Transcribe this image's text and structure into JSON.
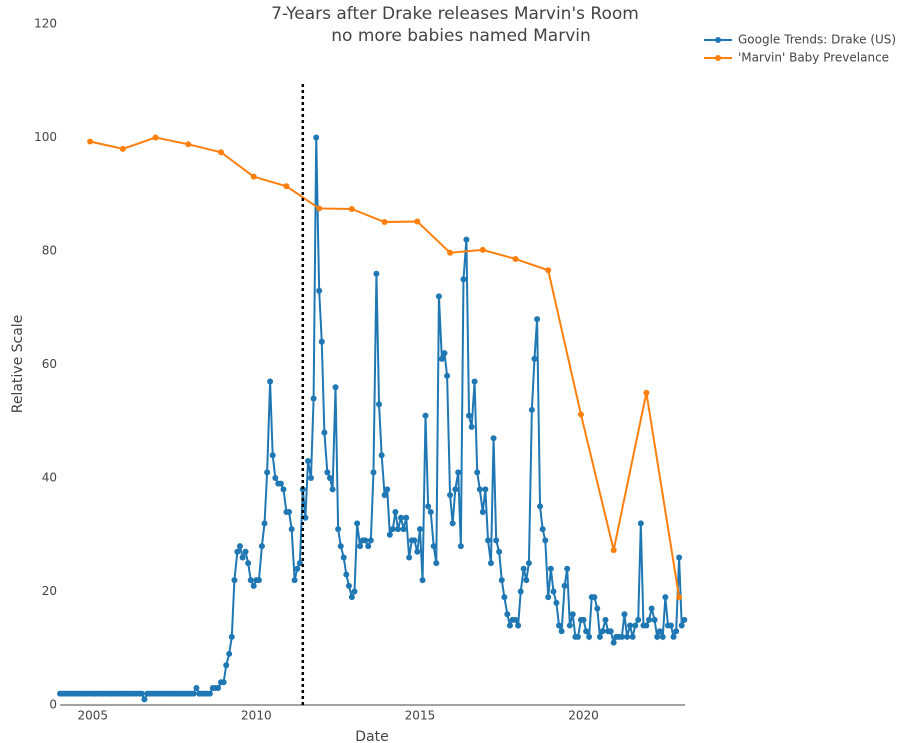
{
  "chart_data": {
    "type": "line",
    "title": [
      "7-Years after Drake releases Marvin's Room",
      "no more babies named Marvin"
    ],
    "x_label": "Date",
    "y_label": "Relative Scale",
    "xlim": [
      2004,
      2023.1
    ],
    "xticks": [
      2005,
      2010,
      2015,
      2020
    ],
    "ylim": [
      0,
      120
    ],
    "yticks": [
      0,
      20,
      40,
      60,
      80,
      100,
      120
    ],
    "grid": false,
    "legend": "top-right",
    "vline_x": 2011.42,
    "series": [
      {
        "name": "Google Trends: Drake (US)",
        "color": "#1f77b4",
        "x": [
          2004,
          2004.08,
          2004.17,
          2004.25,
          2004.33,
          2004.42,
          2004.5,
          2004.58,
          2004.67,
          2004.75,
          2004.83,
          2004.92,
          2005,
          2005.08,
          2005.17,
          2005.25,
          2005.33,
          2005.42,
          2005.5,
          2005.58,
          2005.67,
          2005.75,
          2005.83,
          2005.92,
          2006,
          2006.08,
          2006.17,
          2006.25,
          2006.33,
          2006.42,
          2006.5,
          2006.58,
          2006.67,
          2006.75,
          2006.83,
          2006.92,
          2007,
          2007.08,
          2007.17,
          2007.25,
          2007.33,
          2007.42,
          2007.5,
          2007.58,
          2007.67,
          2007.75,
          2007.83,
          2007.92,
          2008,
          2008.08,
          2008.17,
          2008.25,
          2008.33,
          2008.42,
          2008.5,
          2008.58,
          2008.67,
          2008.75,
          2008.83,
          2008.92,
          2009,
          2009.08,
          2009.17,
          2009.25,
          2009.33,
          2009.42,
          2009.5,
          2009.58,
          2009.67,
          2009.75,
          2009.83,
          2009.92,
          2010,
          2010.08,
          2010.17,
          2010.25,
          2010.33,
          2010.42,
          2010.5,
          2010.58,
          2010.67,
          2010.75,
          2010.83,
          2010.92,
          2011,
          2011.08,
          2011.17,
          2011.25,
          2011.33,
          2011.42,
          2011.5,
          2011.58,
          2011.67,
          2011.75,
          2011.83,
          2011.92,
          2012,
          2012.08,
          2012.17,
          2012.25,
          2012.33,
          2012.42,
          2012.5,
          2012.58,
          2012.67,
          2012.75,
          2012.83,
          2012.92,
          2013,
          2013.08,
          2013.17,
          2013.25,
          2013.33,
          2013.42,
          2013.5,
          2013.58,
          2013.67,
          2013.75,
          2013.83,
          2013.92,
          2014,
          2014.08,
          2014.17,
          2014.25,
          2014.33,
          2014.42,
          2014.5,
          2014.58,
          2014.67,
          2014.75,
          2014.83,
          2014.92,
          2015,
          2015.08,
          2015.17,
          2015.25,
          2015.33,
          2015.42,
          2015.5,
          2015.58,
          2015.67,
          2015.75,
          2015.83,
          2015.92,
          2016,
          2016.08,
          2016.17,
          2016.25,
          2016.33,
          2016.42,
          2016.5,
          2016.58,
          2016.67,
          2016.75,
          2016.83,
          2016.92,
          2017,
          2017.08,
          2017.17,
          2017.25,
          2017.33,
          2017.42,
          2017.5,
          2017.58,
          2017.67,
          2017.75,
          2017.83,
          2017.92,
          2018,
          2018.08,
          2018.17,
          2018.25,
          2018.33,
          2018.42,
          2018.5,
          2018.58,
          2018.67,
          2018.75,
          2018.83,
          2018.92,
          2019,
          2019.08,
          2019.17,
          2019.25,
          2019.33,
          2019.42,
          2019.5,
          2019.58,
          2019.67,
          2019.75,
          2019.83,
          2019.92,
          2020,
          2020.08,
          2020.17,
          2020.25,
          2020.33,
          2020.42,
          2020.5,
          2020.58,
          2020.67,
          2020.75,
          2020.83,
          2020.92,
          2021,
          2021.08,
          2021.17,
          2021.25,
          2021.33,
          2021.42,
          2021.5,
          2021.58,
          2021.67,
          2021.75,
          2021.83,
          2021.92,
          2022,
          2022.08,
          2022.17,
          2022.25,
          2022.33,
          2022.42,
          2022.5,
          2022.58,
          2022.67,
          2022.75,
          2022.83,
          2022.92,
          2023,
          2023.08
        ],
        "values": [
          2,
          2,
          2,
          2,
          2,
          2,
          2,
          2,
          2,
          2,
          2,
          2,
          2,
          2,
          2,
          2,
          2,
          2,
          2,
          2,
          2,
          2,
          2,
          2,
          2,
          2,
          2,
          2,
          2,
          2,
          2,
          1,
          2,
          2,
          2,
          2,
          2,
          2,
          2,
          2,
          2,
          2,
          2,
          2,
          2,
          2,
          2,
          2,
          2,
          2,
          3,
          2,
          2,
          2,
          2,
          2,
          3,
          3,
          3,
          4,
          4,
          7,
          9,
          12,
          22,
          27,
          28,
          26,
          27,
          25,
          22,
          21,
          22,
          22,
          28,
          32,
          41,
          57,
          44,
          40,
          39,
          39,
          38,
          34,
          34,
          31,
          22,
          24,
          25,
          38,
          33,
          43,
          40,
          54,
          100,
          73,
          64,
          48,
          41,
          40,
          38,
          56,
          31,
          28,
          26,
          23,
          21,
          19,
          20,
          32,
          28,
          29,
          29,
          28,
          29,
          41,
          76,
          53,
          44,
          37,
          38,
          30,
          31,
          34,
          31,
          33,
          31,
          33,
          26,
          29,
          29,
          27,
          31,
          22,
          51,
          35,
          34,
          28,
          25,
          72,
          61,
          62,
          58,
          37,
          32,
          38,
          41,
          28,
          75,
          82,
          51,
          49,
          57,
          41,
          38,
          34,
          38,
          29,
          25,
          47,
          29,
          27,
          22,
          19,
          16,
          14,
          15,
          15,
          14,
          20,
          24,
          22,
          25,
          52,
          61,
          68,
          35,
          31,
          29,
          19,
          24,
          20,
          18,
          14,
          13,
          21,
          24,
          14,
          16,
          12,
          12,
          15,
          15,
          13,
          12,
          19,
          19,
          17,
          12,
          13,
          15,
          13,
          13,
          11,
          12,
          12,
          12,
          16,
          12,
          14,
          12,
          14,
          15,
          32,
          14,
          14,
          15,
          17,
          15,
          12,
          13,
          12,
          19,
          14,
          14,
          12,
          13,
          26,
          14,
          15
        ]
      },
      {
        "name": "'Marvin' Baby Prevelance",
        "color": "#ff7f0e",
        "x": [
          2004.92,
          2005.92,
          2006.92,
          2007.92,
          2008.92,
          2009.92,
          2010.92,
          2011.92,
          2012.92,
          2013.92,
          2014.92,
          2015.92,
          2016.92,
          2017.92,
          2018.92,
          2019.92,
          2020.92,
          2021.92,
          2022.92
        ],
        "values": [
          99.3,
          98,
          100,
          98.8,
          97.4,
          93.1,
          91.4,
          87.5,
          87.4,
          85.1,
          85.2,
          79.7,
          80.2,
          78.6,
          76.6,
          51.2,
          27.3,
          55,
          19
        ]
      }
    ]
  }
}
